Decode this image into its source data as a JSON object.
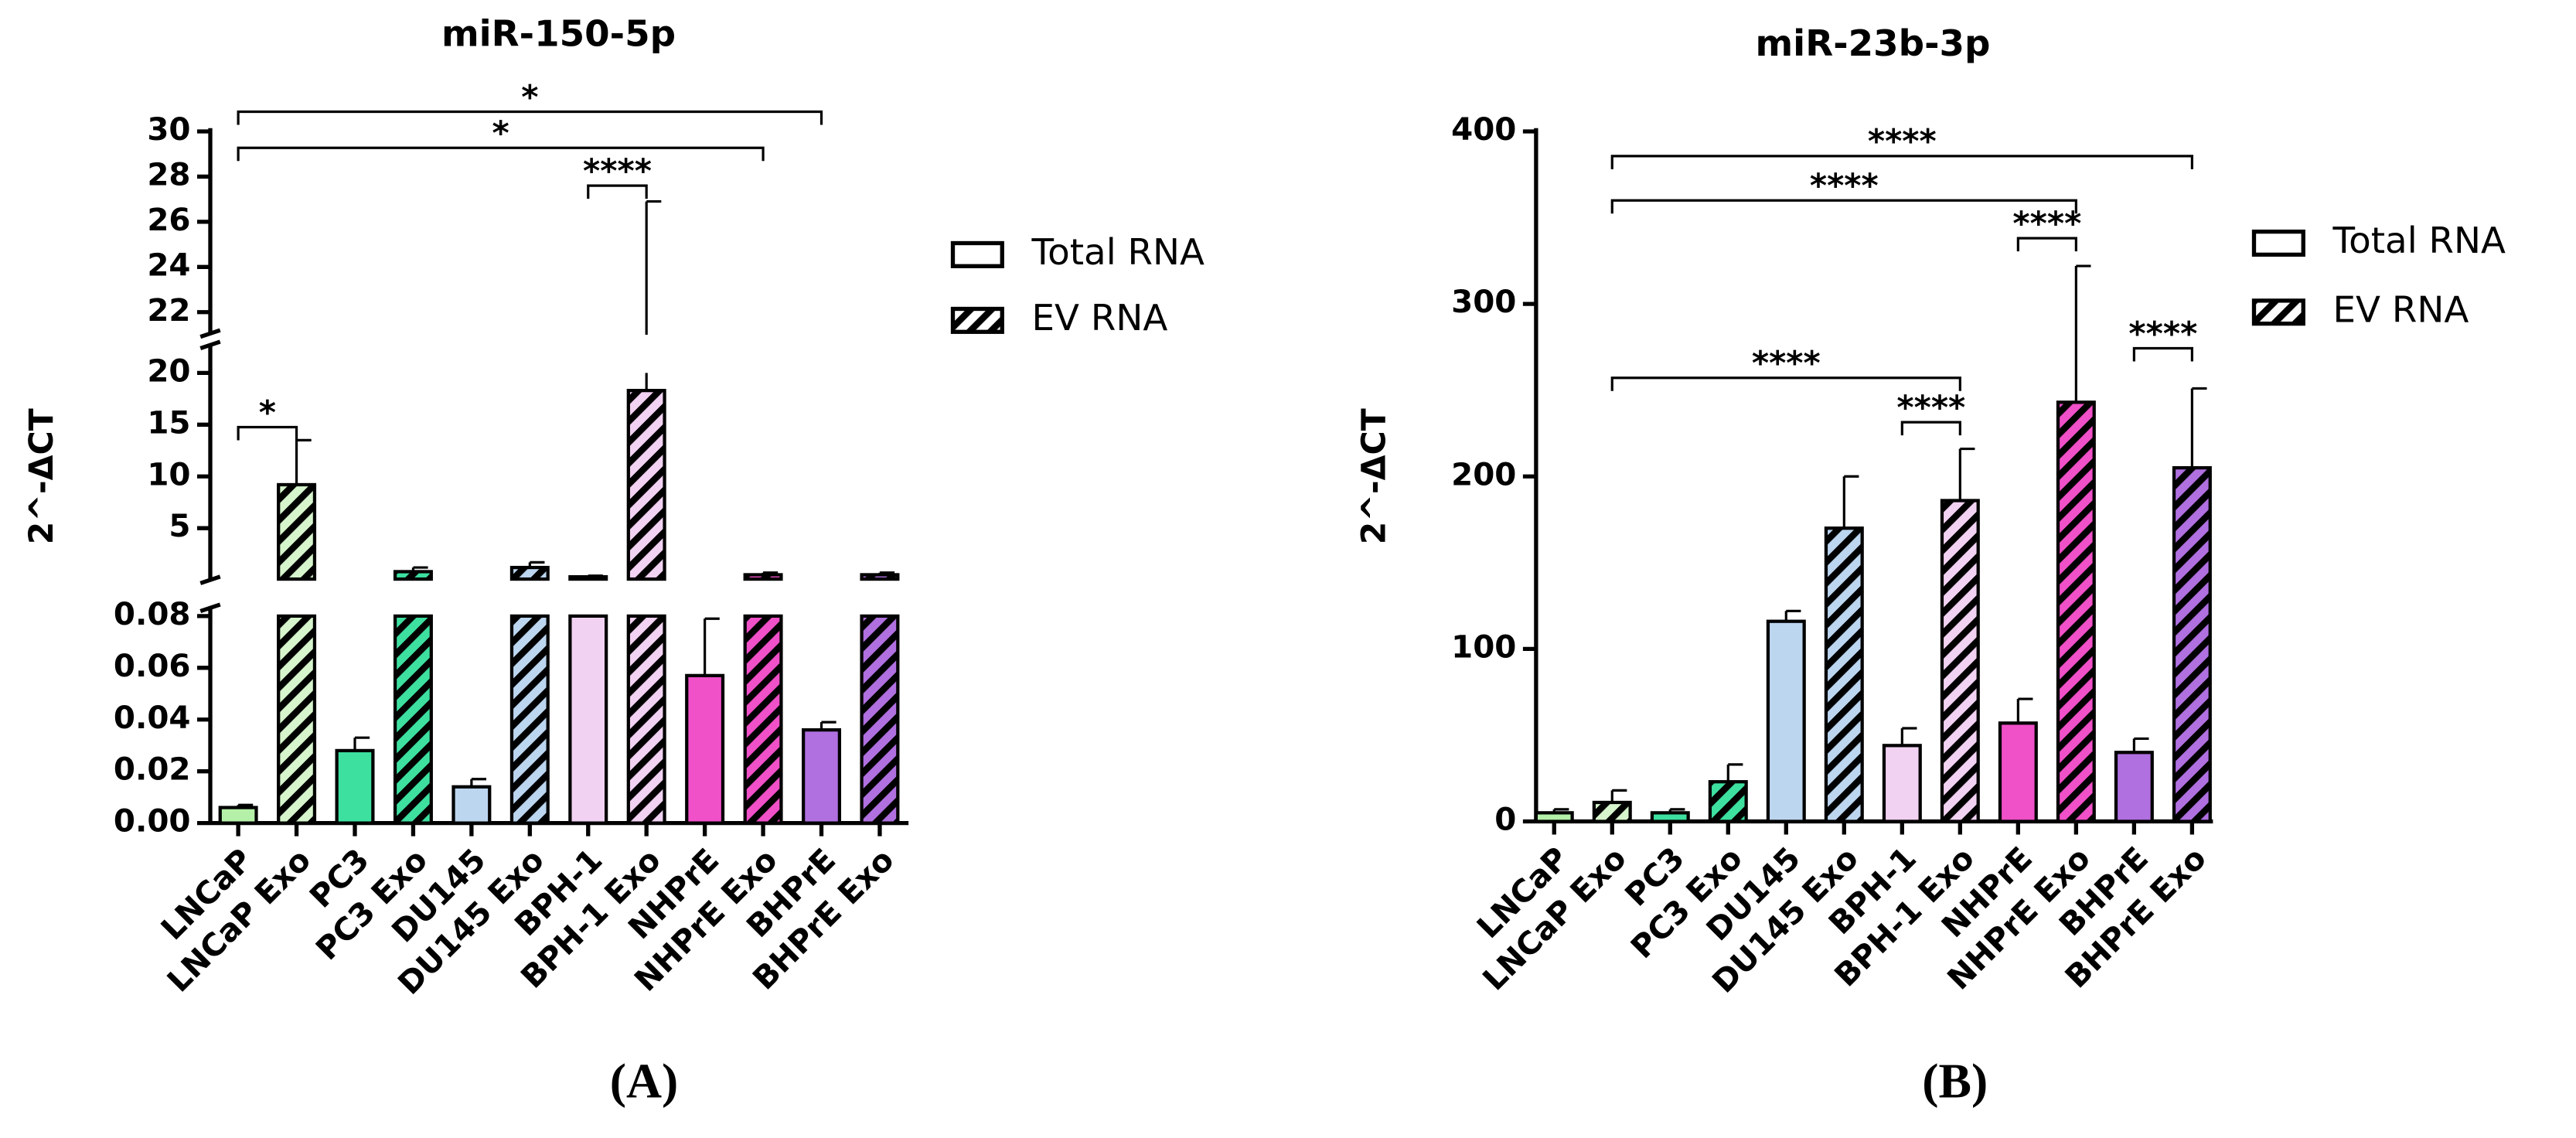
{
  "chart_data": [
    {
      "type": "bar",
      "title": "miR-150-5p",
      "y_label": "2^-ΔCT",
      "panel_label": "(A)",
      "categories": [
        "LNCaP",
        "LNCaP Exo",
        "PC3",
        "PC3 Exo",
        "DU145",
        "DU145 Exo",
        "BPH-1",
        "BPH-1 Exo",
        "NHPrE",
        "NHPrE Exo",
        "BHPrE",
        "BHPrE Exo"
      ],
      "values": [
        0.006,
        9.2,
        0.028,
        0.8,
        0.014,
        1.2,
        0.3,
        18.3,
        0.057,
        0.5,
        0.036,
        0.5
      ],
      "errors": [
        0.001,
        4.3,
        0.005,
        0.4,
        0.003,
        0.5,
        0.1,
        8.6,
        0.022,
        0.2,
        0.003,
        0.2
      ],
      "colors": [
        "#b4f0a8",
        "#d6f5cc",
        "#3ee0a0",
        "#3ee0a0",
        "#bcd6f0",
        "#bcd6f0",
        "#f2d2f2",
        "#f2d2f2",
        "#f050c8",
        "#f050c8",
        "#b070e0",
        "#b070e0"
      ],
      "pattern": [
        0,
        1,
        0,
        1,
        0,
        1,
        0,
        1,
        0,
        1,
        0,
        1
      ],
      "legend": [
        {
          "name": "Total RNA",
          "hatch": false
        },
        {
          "name": "EV RNA",
          "hatch": true
        }
      ],
      "segments": [
        {
          "ylim": [
            0,
            0.08
          ],
          "yticks": [
            {
              "value": 0,
              "label": "0.00"
            },
            {
              "value": 0.02,
              "label": "0.02"
            },
            {
              "value": 0.04,
              "label": "0.04"
            },
            {
              "value": 0.06,
              "label": "0.06"
            },
            {
              "value": 0.08,
              "label": "0.08"
            }
          ]
        },
        {
          "ylim": [
            0,
            20
          ],
          "yticks": [
            5,
            10,
            15,
            20
          ]
        },
        {
          "ylim": [
            21,
            30
          ],
          "yticks": [
            22,
            24,
            26,
            28,
            30
          ]
        }
      ],
      "annotations": [
        {
          "text": "*",
          "from": "LNCaP",
          "to": "BHPrE"
        },
        {
          "text": "*",
          "from": "LNCaP",
          "to": "NHPrE Exo"
        },
        {
          "text": "****",
          "from": "BPH-1",
          "to": "BPH-1 Exo"
        },
        {
          "text": "*",
          "from": "LNCaP",
          "to": "LNCaP Exo"
        }
      ]
    },
    {
      "type": "bar",
      "title": "miR-23b-3p",
      "y_label": "2^-ΔCT",
      "panel_label": "(B)",
      "categories": [
        "LNCaP",
        "LNCaP Exo",
        "PC3",
        "PC3 Exo",
        "DU145",
        "DU145 Exo",
        "BPH-1",
        "BPH-1 Exo",
        "NHPrE",
        "NHPrE Exo",
        "BHPrE",
        "BHPrE Exo"
      ],
      "values": [
        5,
        11,
        5,
        23,
        116,
        170,
        44,
        186,
        57,
        243,
        40,
        205
      ],
      "errors": [
        2,
        7,
        2,
        10,
        6,
        30,
        10,
        30,
        14,
        79,
        8,
        46
      ],
      "colors": [
        "#b4f0a8",
        "#d6f5cc",
        "#3ee0a0",
        "#3ee0a0",
        "#bcd6f0",
        "#bcd6f0",
        "#f2d2f2",
        "#f2d2f2",
        "#f050c8",
        "#f050c8",
        "#b070e0",
        "#b070e0"
      ],
      "pattern": [
        0,
        1,
        0,
        1,
        0,
        1,
        0,
        1,
        0,
        1,
        0,
        1
      ],
      "legend": [
        {
          "name": "Total RNA",
          "hatch": false
        },
        {
          "name": "EV RNA",
          "hatch": true
        }
      ],
      "segments": [
        {
          "ylim": [
            0,
            400
          ],
          "yticks": [
            0,
            100,
            200,
            300,
            400
          ]
        }
      ],
      "annotations": [
        {
          "text": "****",
          "from": "LNCaP Exo",
          "to": "BHPrE Exo"
        },
        {
          "text": "****",
          "from": "LNCaP Exo",
          "to": "NHPrE Exo"
        },
        {
          "text": "****",
          "from": "NHPrE",
          "to": "NHPrE Exo"
        },
        {
          "text": "****",
          "from": "BHPrE",
          "to": "BHPrE Exo"
        },
        {
          "text": "****",
          "from": "LNCaP Exo",
          "to": "BPH-1 Exo"
        },
        {
          "text": "****",
          "from": "BPH-1",
          "to": "BPH-1 Exo"
        }
      ]
    }
  ]
}
